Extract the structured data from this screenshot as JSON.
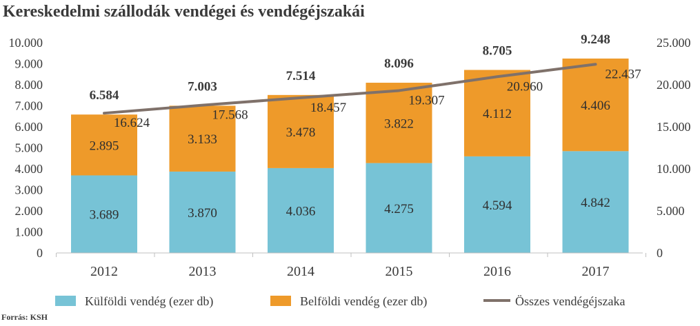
{
  "chart_data": {
    "type": "bar",
    "stacked": true,
    "title": "Kereskedelmi szállodák vendégei és vendégéjszakái",
    "categories": [
      "2012",
      "2013",
      "2014",
      "2015",
      "2016",
      "2017"
    ],
    "series": [
      {
        "name": "Külföldi vendég (ezer db)",
        "axis": "left",
        "color": "#77C3D6",
        "values": [
          3.689,
          3.87,
          4.036,
          4.275,
          4.594,
          4.842
        ],
        "labels": [
          "3.689",
          "3.870",
          "4.036",
          "4.275",
          "4.594",
          "4.842"
        ]
      },
      {
        "name": "Belföldi vendég (ezer db)",
        "axis": "left",
        "color": "#EE9A2A",
        "values": [
          2.895,
          3.133,
          3.478,
          3.822,
          4.112,
          4.406
        ],
        "labels": [
          "2.895",
          "3.133",
          "3.478",
          "3.822",
          "4.112",
          "4.406"
        ]
      },
      {
        "name": "Összes vendégéjszaka",
        "type": "line",
        "axis": "right",
        "color": "#7F716A",
        "values": [
          16.624,
          17.568,
          18.457,
          19.307,
          20.96,
          22.437
        ],
        "labels": [
          "16.624",
          "17.568",
          "18.457",
          "19.307",
          "20.960",
          "22.437"
        ]
      }
    ],
    "totals": [
      "6.584",
      "7.003",
      "7.514",
      "8.096",
      "8.705",
      "9.248"
    ],
    "total_values": [
      6.584,
      7.003,
      7.514,
      8.096,
      8.705,
      9.248
    ],
    "y_left": {
      "ylim": [
        0,
        10
      ],
      "ticks": [
        0,
        1,
        2,
        3,
        4,
        5,
        6,
        7,
        8,
        9,
        10
      ],
      "tick_labels": [
        "0",
        "1.000",
        "2.000",
        "3.000",
        "4.000",
        "5.000",
        "6.000",
        "7.000",
        "8.000",
        "9.000",
        "10.000"
      ]
    },
    "y_right": {
      "ylim": [
        0,
        25
      ],
      "ticks": [
        0,
        5,
        10,
        15,
        20,
        25
      ],
      "tick_labels": [
        "0",
        "5.000",
        "10.000",
        "15.000",
        "20.000",
        "25.000"
      ]
    },
    "xlabel": "",
    "ylabel": "",
    "grid": false,
    "legend": "bottom",
    "source": "Forrás: KSH"
  }
}
